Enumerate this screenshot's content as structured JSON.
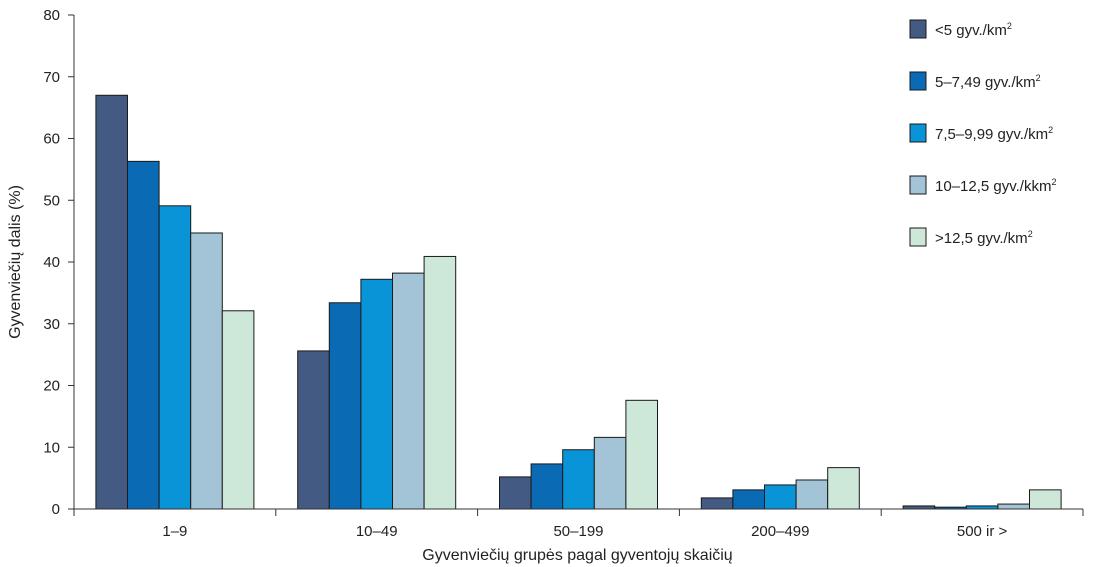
{
  "chart_data": {
    "type": "bar",
    "categories": [
      "1–9",
      "10–49",
      "50–199",
      "200–499",
      "500 ir >"
    ],
    "series": [
      {
        "name": "<5 gyv./km",
        "sup": "2",
        "color": "#435a82",
        "values": [
          67.0,
          25.6,
          5.2,
          1.8,
          0.5
        ]
      },
      {
        "name": "5–7,49 gyv./km",
        "sup": "2",
        "color": "#0a6ab4",
        "values": [
          56.3,
          33.4,
          7.3,
          3.1,
          0.3
        ]
      },
      {
        "name": "7,5–9,99 gyv./km",
        "sup": "2",
        "color": "#0a94d8",
        "values": [
          49.1,
          37.2,
          9.6,
          3.9,
          0.5
        ]
      },
      {
        "name": "10–12,5 gyv./kkm",
        "sup": "2",
        "color": "#a3c3d6",
        "values": [
          44.7,
          38.2,
          11.6,
          4.7,
          0.8
        ]
      },
      {
        "name": ">12,5 gyv./km",
        "sup": "2",
        "color": "#cde7d8",
        "values": [
          32.1,
          40.9,
          17.6,
          6.7,
          3.1
        ]
      }
    ],
    "xlabel": "Gyvenviečių grupės pagal gyventojų skaičių",
    "ylabel": "Gyvenviečių dalis (%)",
    "ylim": [
      0,
      80
    ],
    "yticks": [
      0,
      10,
      20,
      30,
      40,
      50,
      60,
      70,
      80
    ],
    "grid": false,
    "legend_position": "right"
  }
}
